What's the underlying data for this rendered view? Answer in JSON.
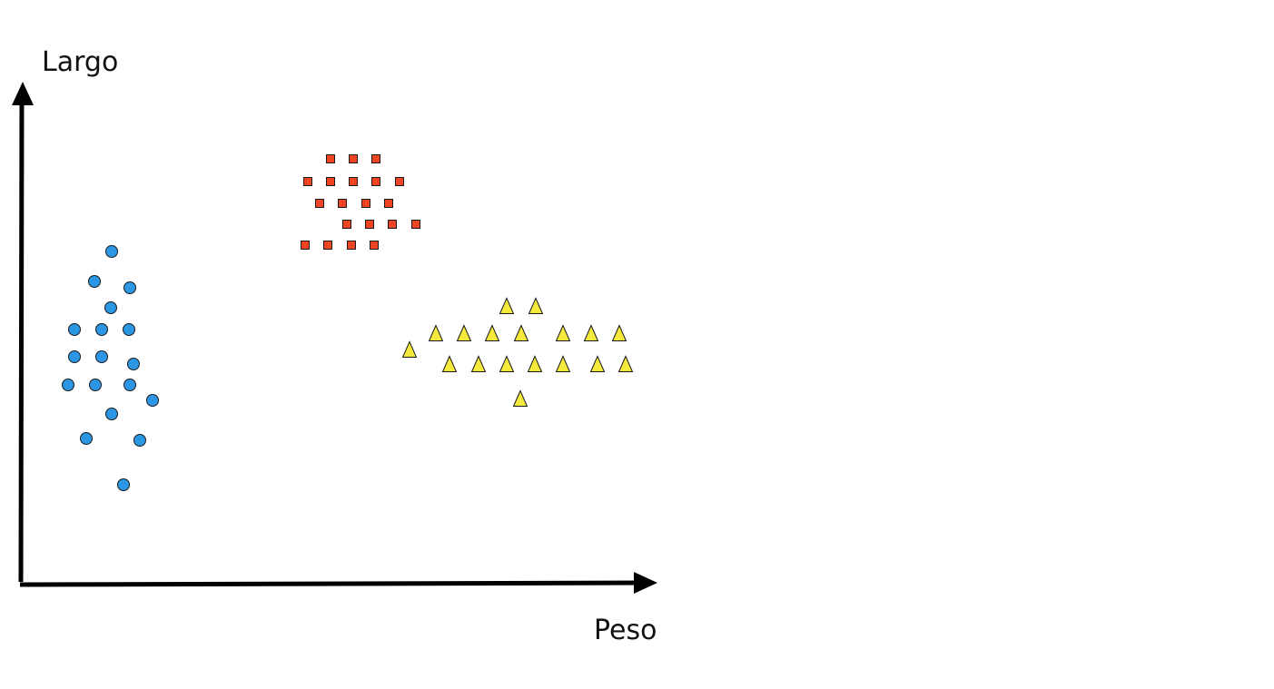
{
  "chart_data": {
    "type": "scatter",
    "title": "",
    "xlabel": "Peso",
    "ylabel": "Largo",
    "xlim": [
      0,
      700
    ],
    "ylim": [
      0,
      550
    ],
    "grid": false,
    "legend": "none",
    "series": [
      {
        "marker": "circle",
        "color": "#2b97e4",
        "points": [
          [
            101,
            364
          ],
          [
            82,
            331
          ],
          [
            121,
            324
          ],
          [
            100,
            302
          ],
          [
            60,
            278
          ],
          [
            90,
            278
          ],
          [
            120,
            278
          ],
          [
            60,
            248
          ],
          [
            90,
            248
          ],
          [
            125,
            240
          ],
          [
            53,
            217
          ],
          [
            83,
            217
          ],
          [
            121,
            217
          ],
          [
            146,
            200
          ],
          [
            101,
            185
          ],
          [
            73,
            158
          ],
          [
            132,
            156
          ],
          [
            114,
            107
          ]
        ]
      },
      {
        "marker": "square",
        "color": "#ee4422",
        "points": [
          [
            342,
            466
          ],
          [
            367,
            466
          ],
          [
            392,
            466
          ],
          [
            317,
            441
          ],
          [
            342,
            441
          ],
          [
            367,
            441
          ],
          [
            392,
            441
          ],
          [
            418,
            441
          ],
          [
            330,
            417
          ],
          [
            355,
            417
          ],
          [
            381,
            417
          ],
          [
            406,
            417
          ],
          [
            360,
            394
          ],
          [
            385,
            394
          ],
          [
            410,
            394
          ],
          [
            436,
            394
          ],
          [
            314,
            371
          ],
          [
            339,
            371
          ],
          [
            365,
            371
          ],
          [
            390,
            371
          ]
        ]
      },
      {
        "marker": "triangle",
        "color": "#f5ea3b",
        "points": [
          [
            536,
            304
          ],
          [
            568,
            304
          ],
          [
            458,
            274
          ],
          [
            489,
            274
          ],
          [
            520,
            274
          ],
          [
            552,
            274
          ],
          [
            598,
            274
          ],
          [
            629,
            274
          ],
          [
            660,
            274
          ],
          [
            429,
            256
          ],
          [
            473,
            240
          ],
          [
            505,
            240
          ],
          [
            536,
            240
          ],
          [
            567,
            240
          ],
          [
            598,
            240
          ],
          [
            636,
            240
          ],
          [
            667,
            240
          ],
          [
            551,
            202
          ]
        ]
      }
    ]
  }
}
